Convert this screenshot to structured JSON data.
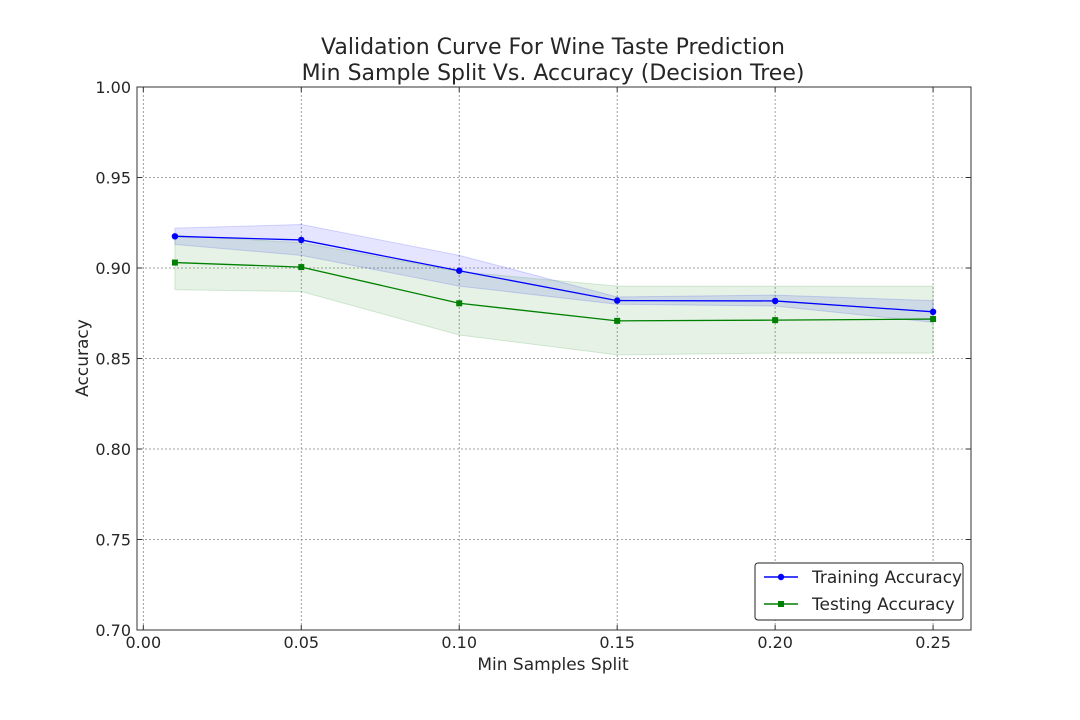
{
  "chart_data": {
    "type": "line",
    "title": "Validation Curve For Wine Taste Prediction",
    "subtitle": "Min Sample Split Vs. Accuracy (Decision Tree)",
    "xlabel": "Min Samples Split",
    "ylabel": "Accuracy",
    "xlim": [
      -0.002,
      0.262
    ],
    "ylim": [
      0.7,
      1.0
    ],
    "xticks": [
      "0.00",
      "0.05",
      "0.10",
      "0.15",
      "0.20",
      "0.25"
    ],
    "yticks": [
      "0.70",
      "0.75",
      "0.80",
      "0.85",
      "0.90",
      "0.95",
      "1.00"
    ],
    "grid": true,
    "legend_position": "lower-right",
    "x": [
      0.01,
      0.05,
      0.1,
      0.15,
      0.2,
      0.25
    ],
    "series": [
      {
        "name": "Training Accuracy",
        "color": "#0000ff",
        "marker": "circle",
        "values": [
          0.9175,
          0.9155,
          0.8985,
          0.882,
          0.8818,
          0.8758
        ],
        "lower": [
          0.913,
          0.907,
          0.89,
          0.88,
          0.879,
          0.87
        ],
        "upper": [
          0.922,
          0.924,
          0.907,
          0.884,
          0.885,
          0.882
        ]
      },
      {
        "name": "Testing Accuracy",
        "color": "#008000",
        "marker": "square",
        "values": [
          0.903,
          0.9005,
          0.8805,
          0.8708,
          0.8712,
          0.8718
        ],
        "lower": [
          0.888,
          0.887,
          0.863,
          0.852,
          0.853,
          0.853
        ],
        "upper": [
          0.918,
          0.914,
          0.898,
          0.89,
          0.89,
          0.89
        ]
      }
    ]
  }
}
